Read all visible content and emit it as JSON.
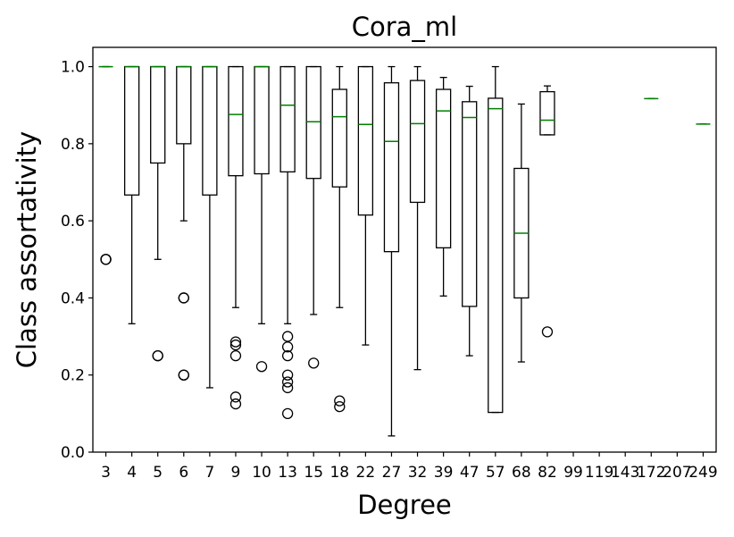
{
  "chart_data": {
    "type": "box",
    "title": "Cora_ml",
    "xlabel": "Degree",
    "ylabel": "Class assortativity",
    "ylim": [
      0.0,
      1.05
    ],
    "yticks": [
      "0.0",
      "0.2",
      "0.4",
      "0.6",
      "0.8",
      "1.0"
    ],
    "categories": [
      "3",
      "4",
      "5",
      "6",
      "7",
      "9",
      "10",
      "13",
      "15",
      "18",
      "22",
      "27",
      "32",
      "39",
      "47",
      "57",
      "68",
      "82",
      "99",
      "119",
      "143",
      "172",
      "207",
      "249"
    ],
    "boxes": [
      {
        "category": "3",
        "whisker_low": 1.0,
        "q1": 1.0,
        "median": 1.0,
        "q3": 1.0,
        "whisker_high": 1.0,
        "outliers": [
          0.5,
          0.5,
          0.5
        ]
      },
      {
        "category": "4",
        "whisker_low": 0.333,
        "q1": 0.667,
        "median": 1.0,
        "q3": 1.0,
        "whisker_high": 1.0,
        "outliers": []
      },
      {
        "category": "5",
        "whisker_low": 0.5,
        "q1": 0.75,
        "median": 1.0,
        "q3": 1.0,
        "whisker_high": 1.0,
        "outliers": [
          0.25,
          0.25
        ]
      },
      {
        "category": "6",
        "whisker_low": 0.6,
        "q1": 0.8,
        "median": 1.0,
        "q3": 1.0,
        "whisker_high": 1.0,
        "outliers": [
          0.4,
          0.4,
          0.2,
          0.2
        ]
      },
      {
        "category": "7",
        "whisker_low": 0.167,
        "q1": 0.667,
        "median": 1.0,
        "q3": 1.0,
        "whisker_high": 1.0,
        "outliers": []
      },
      {
        "category": "9",
        "whisker_low": 0.375,
        "q1": 0.717,
        "median": 0.876,
        "q3": 1.0,
        "whisker_high": 1.0,
        "outliers": [
          0.286,
          0.278,
          0.25,
          0.143,
          0.125
        ]
      },
      {
        "category": "10",
        "whisker_low": 0.333,
        "q1": 0.722,
        "median": 1.0,
        "q3": 1.0,
        "whisker_high": 1.0,
        "outliers": [
          0.222
        ]
      },
      {
        "category": "13",
        "whisker_low": 0.333,
        "q1": 0.727,
        "median": 0.9,
        "q3": 1.0,
        "whisker_high": 1.0,
        "outliers": [
          0.3,
          0.273,
          0.25,
          0.2,
          0.182,
          0.167,
          0.1
        ]
      },
      {
        "category": "15",
        "whisker_low": 0.357,
        "q1": 0.71,
        "median": 0.857,
        "q3": 1.0,
        "whisker_high": 1.0,
        "outliers": [
          0.231
        ]
      },
      {
        "category": "18",
        "whisker_low": 0.375,
        "q1": 0.688,
        "median": 0.87,
        "q3": 0.941,
        "whisker_high": 1.0,
        "outliers": [
          0.133,
          0.118
        ]
      },
      {
        "category": "22",
        "whisker_low": 0.278,
        "q1": 0.615,
        "median": 0.85,
        "q3": 1.0,
        "whisker_high": 1.0,
        "outliers": []
      },
      {
        "category": "27",
        "whisker_low": 0.042,
        "q1": 0.52,
        "median": 0.806,
        "q3": 0.958,
        "whisker_high": 1.0,
        "outliers": []
      },
      {
        "category": "32",
        "whisker_low": 0.214,
        "q1": 0.648,
        "median": 0.852,
        "q3": 0.964,
        "whisker_high": 1.0,
        "outliers": []
      },
      {
        "category": "39",
        "whisker_low": 0.405,
        "q1": 0.53,
        "median": 0.885,
        "q3": 0.941,
        "whisker_high": 0.972,
        "outliers": []
      },
      {
        "category": "47",
        "whisker_low": 0.25,
        "q1": 0.378,
        "median": 0.868,
        "q3": 0.909,
        "whisker_high": 0.949,
        "outliers": []
      },
      {
        "category": "57",
        "whisker_low": 0.103,
        "q1": 0.103,
        "median": 0.891,
        "q3": 0.918,
        "whisker_high": 1.0,
        "outliers": []
      },
      {
        "category": "68",
        "whisker_low": 0.234,
        "q1": 0.4,
        "median": 0.568,
        "q3": 0.736,
        "whisker_high": 0.903,
        "outliers": []
      },
      {
        "category": "82",
        "whisker_low": 0.823,
        "q1": 0.823,
        "median": 0.861,
        "q3": 0.935,
        "whisker_high": 0.95,
        "outliers": [
          0.312
        ]
      },
      {
        "category": "99",
        "whisker_low": null,
        "q1": null,
        "median": null,
        "q3": null,
        "whisker_high": null,
        "outliers": []
      },
      {
        "category": "119",
        "whisker_low": null,
        "q1": null,
        "median": null,
        "q3": null,
        "whisker_high": null,
        "outliers": []
      },
      {
        "category": "143",
        "whisker_low": null,
        "q1": null,
        "median": null,
        "q3": null,
        "whisker_high": null,
        "outliers": []
      },
      {
        "category": "172",
        "whisker_low": 0.917,
        "q1": 0.917,
        "median": 0.917,
        "q3": 0.917,
        "whisker_high": 0.917,
        "outliers": []
      },
      {
        "category": "207",
        "whisker_low": null,
        "q1": null,
        "median": null,
        "q3": null,
        "whisker_high": null,
        "outliers": []
      },
      {
        "category": "249",
        "whisker_low": 0.851,
        "q1": 0.851,
        "median": 0.851,
        "q3": 0.851,
        "whisker_high": 0.851,
        "outliers": []
      }
    ],
    "colors": {
      "box": "#000000",
      "median": "#008000",
      "outlier": "#000000"
    },
    "grid": false,
    "legend": "none"
  }
}
